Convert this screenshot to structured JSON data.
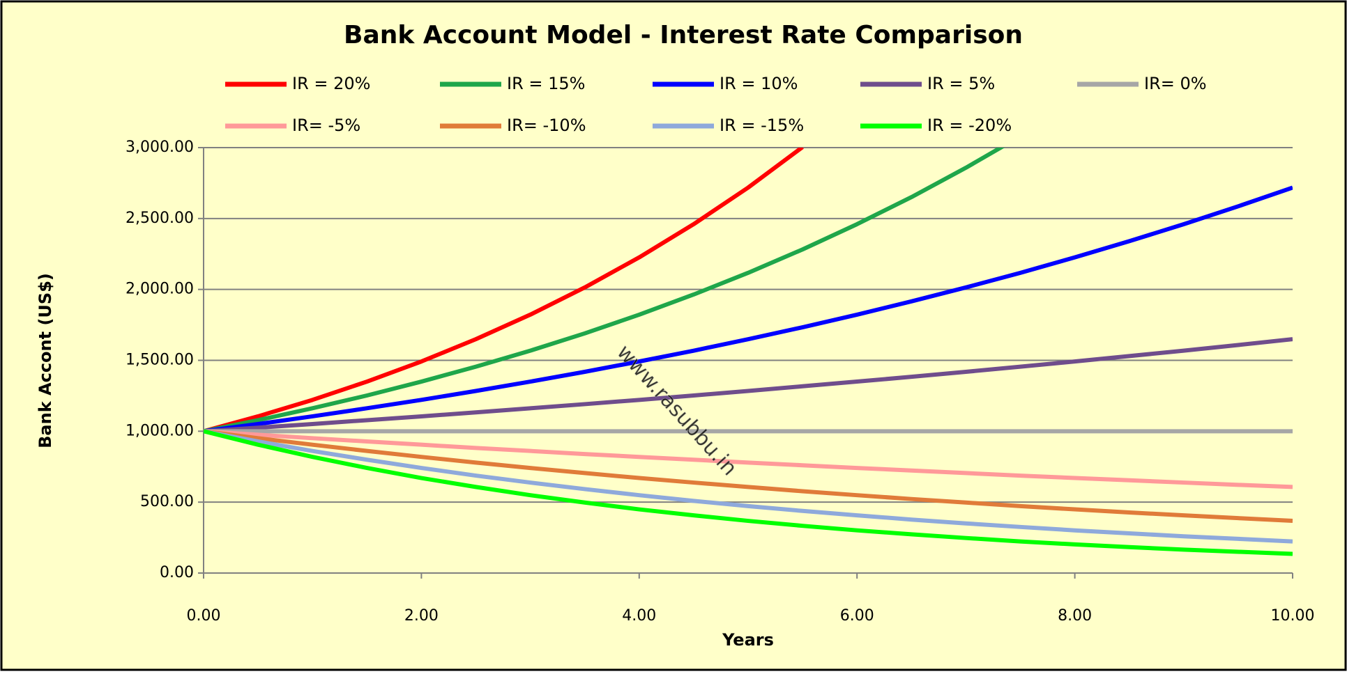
{
  "chart_data": {
    "type": "line",
    "title": "Bank Account Model - Interest Rate Comparison",
    "xlabel": "Years",
    "ylabel": "Bank Accont (US$)",
    "annotation": "www.rasubbu.in",
    "x": [
      0,
      0.5,
      1,
      1.5,
      2,
      2.5,
      3,
      3.5,
      4,
      4.5,
      5,
      5.5,
      6,
      6.5,
      7,
      7.5,
      8,
      8.5,
      9,
      9.5,
      10
    ],
    "series": [
      {
        "name": "IR = 20%",
        "color": "#ff0000",
        "values": [
          1000,
          1105,
          1221,
          1350,
          1492,
          1649,
          1822,
          2014,
          2226,
          2460,
          2718,
          3004,
          null,
          null,
          null,
          null,
          null,
          null,
          null,
          null,
          null
        ]
      },
      {
        "name": "IR = 15%",
        "color": "#1fa64a",
        "values": [
          1000,
          1078,
          1162,
          1252,
          1350,
          1455,
          1568,
          1690,
          1822,
          1964,
          2117,
          2282,
          2460,
          2651,
          2858,
          3080,
          null,
          null,
          null,
          null,
          null
        ]
      },
      {
        "name": "IR = 10%",
        "color": "#0000ff",
        "values": [
          1000,
          1051,
          1105,
          1162,
          1221,
          1284,
          1350,
          1419,
          1492,
          1568,
          1649,
          1733,
          1822,
          1916,
          2014,
          2117,
          2226,
          2340,
          2460,
          2586,
          2718
        ]
      },
      {
        "name": "IR = 5%",
        "color": "#6f4d8c",
        "values": [
          1000,
          1025,
          1051,
          1078,
          1105,
          1133,
          1162,
          1191,
          1221,
          1252,
          1284,
          1317,
          1350,
          1384,
          1419,
          1455,
          1492,
          1530,
          1568,
          1608,
          1649
        ]
      },
      {
        "name": "IR= 0%",
        "color": "#a6a6a6",
        "values": [
          1000,
          1000,
          1000,
          1000,
          1000,
          1000,
          1000,
          1000,
          1000,
          1000,
          1000,
          1000,
          1000,
          1000,
          1000,
          1000,
          1000,
          1000,
          1000,
          1000,
          1000
        ]
      },
      {
        "name": "IR= -5%",
        "color": "#ff9999",
        "values": [
          1000,
          975,
          951,
          928,
          905,
          882,
          861,
          839,
          819,
          799,
          779,
          760,
          741,
          723,
          705,
          687,
          670,
          654,
          638,
          622,
          607
        ]
      },
      {
        "name": "IR= -10%",
        "color": "#e07b39",
        "values": [
          1000,
          951,
          905,
          861,
          819,
          779,
          741,
          705,
          670,
          638,
          607,
          577,
          549,
          522,
          497,
          472,
          449,
          427,
          407,
          387,
          368
        ]
      },
      {
        "name": "IR = -15%",
        "color": "#8ea9db",
        "values": [
          1000,
          928,
          861,
          799,
          741,
          687,
          638,
          592,
          549,
          509,
          472,
          438,
          407,
          377,
          350,
          325,
          301,
          280,
          259,
          241,
          223
        ]
      },
      {
        "name": "IR = -20%",
        "color": "#00ff00",
        "values": [
          1000,
          905,
          819,
          741,
          670,
          607,
          549,
          497,
          449,
          407,
          368,
          333,
          301,
          273,
          247,
          223,
          202,
          183,
          165,
          150,
          135
        ]
      }
    ],
    "xlim": [
      0,
      10
    ],
    "xticks": [
      {
        "value": 0,
        "label": "0.00"
      },
      {
        "value": 2,
        "label": "2.00"
      },
      {
        "value": 4,
        "label": "4.00"
      },
      {
        "value": 6,
        "label": "6.00"
      },
      {
        "value": 8,
        "label": "8.00"
      },
      {
        "value": 10,
        "label": "10.00"
      }
    ],
    "ylim": [
      0,
      3000
    ],
    "yticks": [
      {
        "value": 0,
        "label": "0.00"
      },
      {
        "value": 500,
        "label": "500.00"
      },
      {
        "value": 1000,
        "label": "1,000.00"
      },
      {
        "value": 1500,
        "label": "1,500.00"
      },
      {
        "value": 2000,
        "label": "2,000.00"
      },
      {
        "value": 2500,
        "label": "2,500.00"
      },
      {
        "value": 3000,
        "label": "3,000.00"
      }
    ],
    "grid": true,
    "legend": "top"
  }
}
